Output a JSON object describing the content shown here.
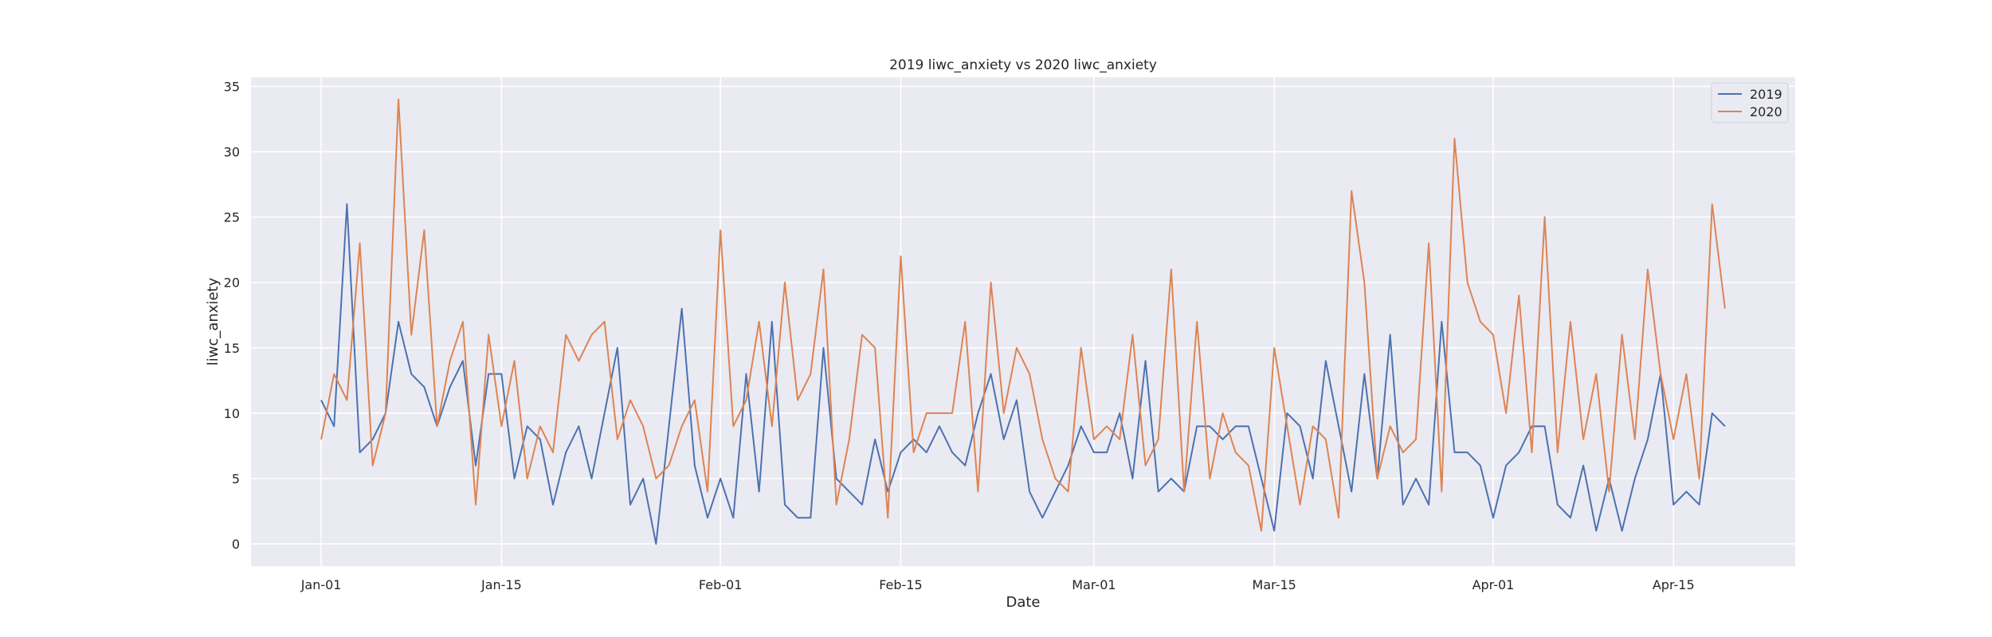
{
  "chart_data": {
    "type": "line",
    "title": "2019 liwc_anxiety vs 2020 liwc_anxiety",
    "xlabel": "Date",
    "ylabel": "liwc_anxiety",
    "x_start": "Jan-01",
    "x_ticks": [
      "Jan-01",
      "Jan-15",
      "Feb-01",
      "Feb-15",
      "Mar-01",
      "Mar-15",
      "Apr-01",
      "Apr-15"
    ],
    "y_ticks": [
      0,
      5,
      10,
      15,
      20,
      25,
      30,
      35
    ],
    "ylim": [
      -1.7,
      35.7
    ],
    "grid": true,
    "legend_position": "top-right",
    "background_color": "#eaeaf2",
    "series": [
      {
        "name": "2019",
        "color": "#4c72b0",
        "values": [
          11,
          9,
          26,
          7,
          8,
          10,
          17,
          13,
          12,
          9,
          12,
          14,
          6,
          13,
          13,
          5,
          9,
          8,
          3,
          7,
          9,
          5,
          10,
          15,
          3,
          5,
          0,
          9,
          18,
          6,
          2,
          5,
          2,
          13,
          4,
          17,
          3,
          2,
          2,
          15,
          5,
          4,
          3,
          8,
          4,
          7,
          8,
          7,
          9,
          7,
          6,
          10,
          13,
          8,
          11,
          4,
          2,
          4,
          6,
          9,
          7,
          7,
          10,
          5,
          14,
          4,
          5,
          4,
          9,
          9,
          8,
          9,
          9,
          5,
          1,
          10,
          9,
          5,
          14,
          9,
          4,
          13,
          5,
          16,
          3,
          5,
          3,
          17,
          7,
          7,
          6,
          2,
          6,
          7,
          9,
          9,
          3,
          2,
          6,
          1,
          5,
          1,
          5,
          8,
          13,
          3,
          4,
          3,
          10,
          9
        ]
      },
      {
        "name": "2020",
        "color": "#dd8452",
        "values": [
          8,
          13,
          11,
          23,
          6,
          10,
          34,
          16,
          24,
          9,
          14,
          17,
          3,
          16,
          9,
          14,
          5,
          9,
          7,
          16,
          14,
          16,
          17,
          8,
          11,
          9,
          5,
          6,
          9,
          11,
          4,
          24,
          9,
          11,
          17,
          9,
          20,
          11,
          13,
          21,
          3,
          8,
          16,
          15,
          2,
          22,
          7,
          10,
          10,
          10,
          17,
          4,
          20,
          10,
          15,
          13,
          8,
          5,
          4,
          15,
          8,
          9,
          8,
          16,
          6,
          8,
          21,
          4,
          17,
          5,
          10,
          7,
          6,
          1,
          15,
          9,
          3,
          9,
          8,
          2,
          27,
          20,
          5,
          9,
          7,
          8,
          23,
          4,
          31,
          20,
          17,
          16,
          10,
          19,
          7,
          25,
          7,
          17,
          8,
          13,
          4,
          16,
          8,
          21,
          13,
          8,
          13,
          5,
          26,
          18
        ]
      }
    ]
  }
}
